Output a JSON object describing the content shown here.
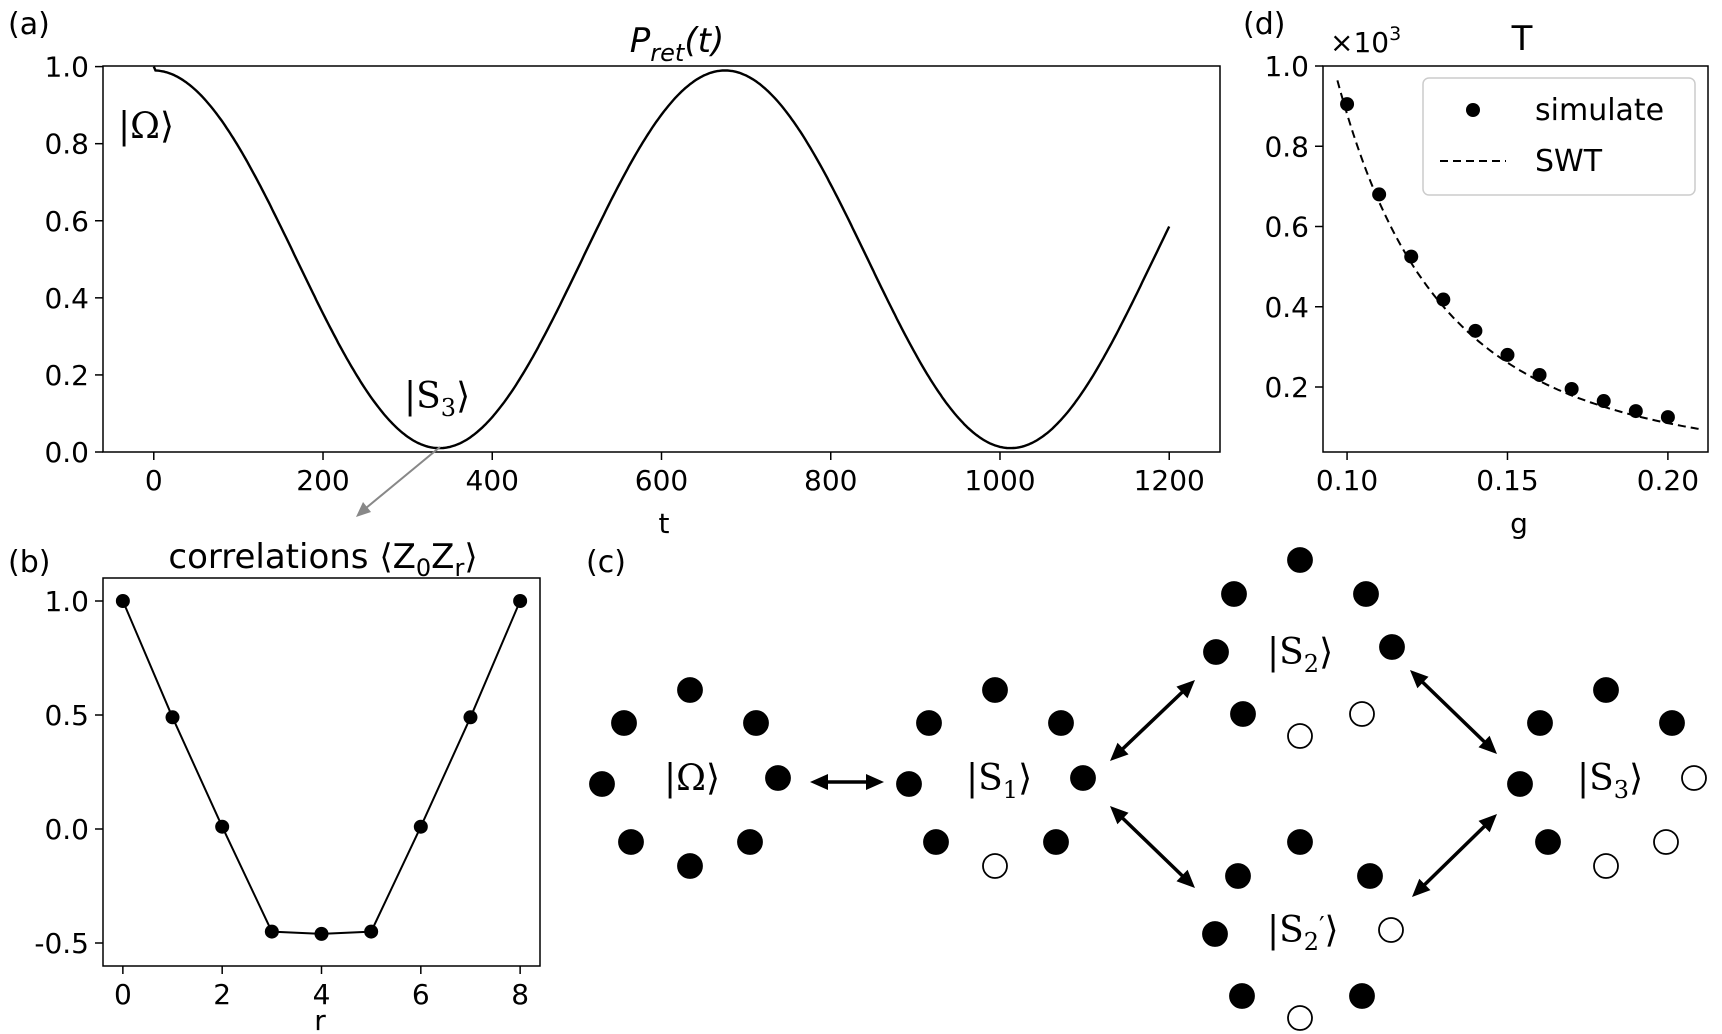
{
  "panels": {
    "a": {
      "label": "(a)"
    },
    "b": {
      "label": "(b)"
    },
    "c": {
      "label": "(c)"
    },
    "d": {
      "label": "(d)"
    }
  },
  "chart_data": [
    {
      "id": "a",
      "type": "line",
      "title_base": "P",
      "title_sub": "ret",
      "title_tail": "(t)",
      "xlabel": "t",
      "ylabel": "",
      "xlim": [
        -60,
        1260
      ],
      "ylim": [
        0,
        1.0
      ],
      "xticks": [
        0,
        200,
        400,
        600,
        800,
        1000,
        1200
      ],
      "yticks": [
        0.0,
        0.2,
        0.4,
        0.6,
        0.8,
        1.0
      ],
      "ytick_labels": [
        "0.0",
        "0.2",
        "0.4",
        "0.6",
        "0.8",
        "1.0"
      ],
      "series": [
        {
          "function": "P(t) = 0.5 + 0.49*cos(2*pi*t/675) + 0.01*cos(...)",
          "t_range": [
            0,
            1200
          ],
          "period": 675,
          "min": 0.01,
          "max": 0.99
        }
      ],
      "annotations": [
        {
          "text_base": "|Ω",
          "text_close": "⟩",
          "x": 0,
          "y": 0.9
        },
        {
          "text_base": "|S",
          "text_sub": "3",
          "text_close": "⟩",
          "x": 338,
          "y": 0.15
        }
      ]
    },
    {
      "id": "b",
      "type": "line",
      "title_base": "correlations ⟨Z",
      "title_sub0": "0",
      "title_mid": "Z",
      "title_sub1": "r",
      "title_close": "⟩",
      "xlabel": "r",
      "ylabel": "",
      "xlim": [
        -0.4,
        8.4
      ],
      "ylim": [
        -0.55,
        1.1
      ],
      "xticks": [
        0,
        2,
        4,
        6,
        8
      ],
      "yticks": [
        -0.5,
        0.0,
        0.5,
        1.0
      ],
      "ytick_labels": [
        "-0.5",
        "0.0",
        "0.5",
        "1.0"
      ],
      "x": [
        0,
        1,
        2,
        3,
        4,
        5,
        6,
        7,
        8
      ],
      "values": [
        1.0,
        0.49,
        0.01,
        -0.45,
        -0.46,
        -0.45,
        0.01,
        0.49,
        1.0
      ]
    },
    {
      "id": "d",
      "type": "scatter",
      "title": "T",
      "multiplier_base": "×10",
      "multiplier_exp": "3",
      "xlabel": "g",
      "ylabel": "",
      "xlim": [
        0.0925,
        0.2125
      ],
      "ylim": [
        0.08,
        1.0
      ],
      "xticks": [
        0.1,
        0.15,
        0.2
      ],
      "xtick_labels": [
        "0.10",
        "0.15",
        "0.20"
      ],
      "yticks": [
        0.2,
        0.4,
        0.6,
        0.8,
        1.0
      ],
      "ytick_labels": [
        "0.2",
        "0.4",
        "0.6",
        "0.8",
        "1.0"
      ],
      "series": [
        {
          "name": "simulate",
          "style": "dots",
          "x": [
            0.1,
            0.11,
            0.12,
            0.13,
            0.14,
            0.15,
            0.16,
            0.17,
            0.18,
            0.19,
            0.2
          ],
          "values": [
            0.905,
            0.68,
            0.525,
            0.418,
            0.34,
            0.28,
            0.23,
            0.195,
            0.165,
            0.14,
            0.125
          ]
        },
        {
          "name": "SWT",
          "style": "dashed",
          "x": [
            0.097,
            0.21
          ],
          "fit": "T = 0.00088 / g^3"
        }
      ],
      "legend_position": "top-right"
    }
  ],
  "diagram": {
    "states": [
      {
        "id": "omega",
        "text_base": "|Ω",
        "text_close": "⟩"
      },
      {
        "id": "s1",
        "text_base": "|S",
        "text_sub": "1",
        "text_close": "⟩"
      },
      {
        "id": "s2",
        "text_base": "|S",
        "text_sub": "2",
        "text_close": "⟩"
      },
      {
        "id": "s2p",
        "text_base": "|S",
        "text_sub": "2",
        "text_prime": "′",
        "text_close": "⟩"
      },
      {
        "id": "s3",
        "text_base": "|S",
        "text_sub": "3",
        "text_close": "⟩"
      }
    ],
    "rings": [
      {
        "state": "omega",
        "filled": [
          1,
          1,
          1,
          1,
          1,
          1,
          1,
          1
        ]
      },
      {
        "state": "s1",
        "filled": [
          1,
          1,
          1,
          1,
          1,
          0,
          1,
          1
        ]
      },
      {
        "state": "s2",
        "filled": [
          1,
          1,
          1,
          1,
          1,
          0,
          1,
          0
        ]
      },
      {
        "state": "s2p",
        "filled": [
          1,
          1,
          1,
          1,
          0,
          0,
          1,
          0
        ]
      },
      {
        "state": "s3",
        "filled": [
          1,
          1,
          1,
          0,
          0,
          0,
          1,
          1
        ]
      }
    ],
    "colors": {
      "filled": "#000000",
      "empty": "#ffffff"
    }
  }
}
